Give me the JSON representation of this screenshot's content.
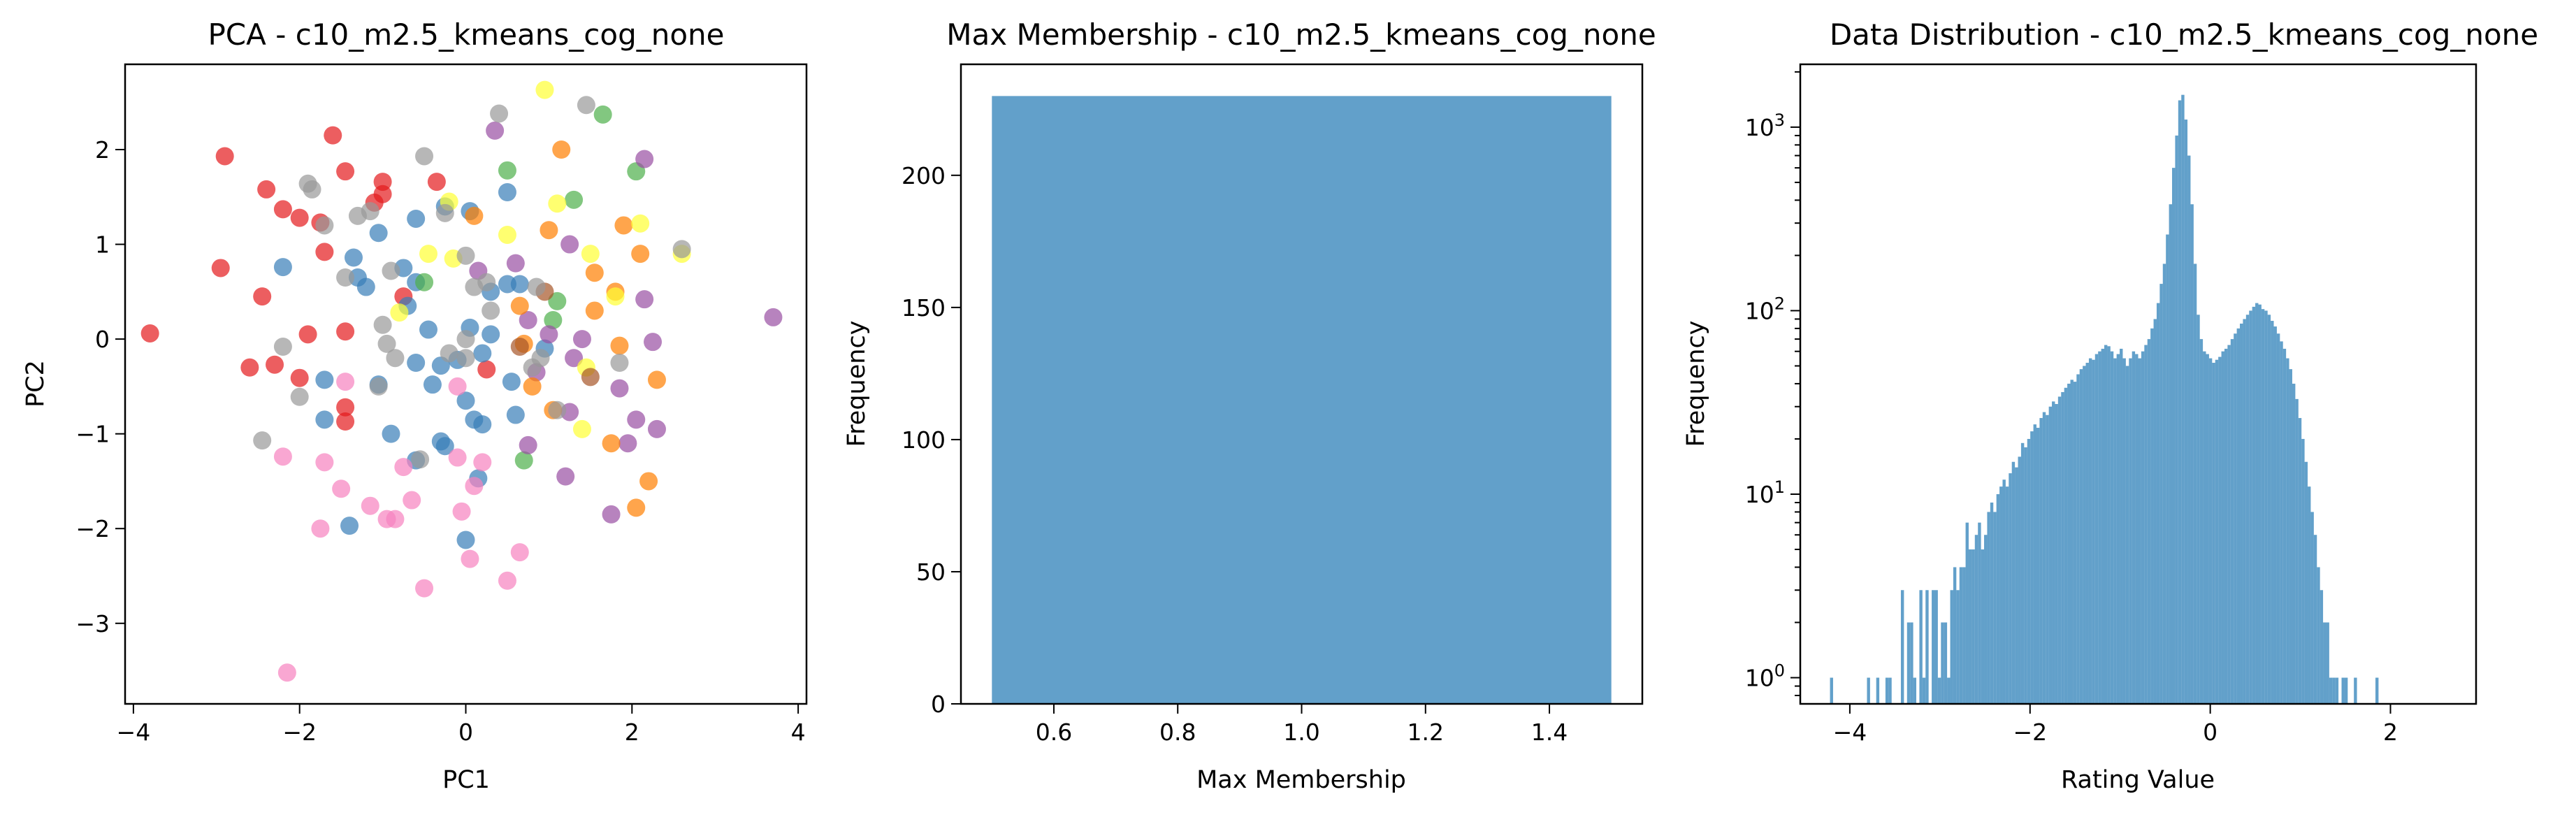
{
  "chart_data": [
    {
      "type": "scatter",
      "title": "PCA - c10_m2.5_kmeans_cog_none",
      "xlabel": "PC1",
      "ylabel": "PC2",
      "xlim": [
        -4.1,
        4.1
      ],
      "ylim": [
        -3.85,
        2.9
      ],
      "xticks": [
        -4,
        -2,
        0,
        2,
        4
      ],
      "yticks": [
        -3,
        -2,
        -1,
        0,
        1,
        2
      ],
      "xtick_labels": [
        "−4",
        "−2",
        "0",
        "2",
        "4"
      ],
      "ytick_labels": [
        "−3",
        "−2",
        "−1",
        "0",
        "1",
        "2"
      ],
      "marker_alpha": 0.7,
      "cluster_colors": [
        "#e41a1c",
        "#377eb8",
        "#4daf4a",
        "#984ea3",
        "#ff7f00",
        "#ffff33",
        "#a65628",
        "#f781bf",
        "#999999"
      ],
      "points": [
        {
          "x": -3.8,
          "y": 0.06,
          "c": 0
        },
        {
          "x": -2.9,
          "y": 1.93,
          "c": 0
        },
        {
          "x": -2.95,
          "y": 0.75,
          "c": 0
        },
        {
          "x": -2.4,
          "y": 1.58,
          "c": 0
        },
        {
          "x": -2.2,
          "y": 1.37,
          "c": 0
        },
        {
          "x": -2.0,
          "y": 1.28,
          "c": 0
        },
        {
          "x": -1.6,
          "y": 2.15,
          "c": 0
        },
        {
          "x": -1.45,
          "y": 1.77,
          "c": 0
        },
        {
          "x": -1.75,
          "y": 1.23,
          "c": 0
        },
        {
          "x": -1.1,
          "y": 1.44,
          "c": 0
        },
        {
          "x": -1.0,
          "y": 1.66,
          "c": 0
        },
        {
          "x": -1.0,
          "y": 1.53,
          "c": 0
        },
        {
          "x": -0.35,
          "y": 1.66,
          "c": 0
        },
        {
          "x": -1.7,
          "y": 0.92,
          "c": 0
        },
        {
          "x": -2.45,
          "y": 0.45,
          "c": 0
        },
        {
          "x": -1.9,
          "y": 0.05,
          "c": 0
        },
        {
          "x": -1.45,
          "y": 0.08,
          "c": 0
        },
        {
          "x": -0.75,
          "y": 0.45,
          "c": 0
        },
        {
          "x": -2.3,
          "y": -0.27,
          "c": 0
        },
        {
          "x": -2.6,
          "y": -0.3,
          "c": 0
        },
        {
          "x": -2.0,
          "y": -0.41,
          "c": 0
        },
        {
          "x": -1.45,
          "y": -0.72,
          "c": 0
        },
        {
          "x": -1.45,
          "y": -0.87,
          "c": 0
        },
        {
          "x": 0.25,
          "y": -0.32,
          "c": 0
        },
        {
          "x": -2.2,
          "y": 0.76,
          "c": 1
        },
        {
          "x": -1.35,
          "y": 0.86,
          "c": 1
        },
        {
          "x": -1.05,
          "y": 1.12,
          "c": 1
        },
        {
          "x": -0.6,
          "y": 1.27,
          "c": 1
        },
        {
          "x": -0.25,
          "y": 1.4,
          "c": 1
        },
        {
          "x": 0.05,
          "y": 1.35,
          "c": 1
        },
        {
          "x": 0.5,
          "y": 1.55,
          "c": 1
        },
        {
          "x": -1.3,
          "y": 0.65,
          "c": 1
        },
        {
          "x": -1.2,
          "y": 0.55,
          "c": 1
        },
        {
          "x": -0.75,
          "y": 0.75,
          "c": 1
        },
        {
          "x": -0.7,
          "y": 0.35,
          "c": 1
        },
        {
          "x": -0.45,
          "y": 0.1,
          "c": 1
        },
        {
          "x": -0.6,
          "y": -0.25,
          "c": 1
        },
        {
          "x": -0.4,
          "y": -0.48,
          "c": 1
        },
        {
          "x": -0.3,
          "y": -0.28,
          "c": 1
        },
        {
          "x": -0.1,
          "y": -0.22,
          "c": 1
        },
        {
          "x": 0.05,
          "y": 0.12,
          "c": 1
        },
        {
          "x": 0.3,
          "y": 0.05,
          "c": 1
        },
        {
          "x": 0.5,
          "y": 0.58,
          "c": 1
        },
        {
          "x": 0.65,
          "y": 0.58,
          "c": 1
        },
        {
          "x": 0.3,
          "y": 0.5,
          "c": 1
        },
        {
          "x": 0.2,
          "y": -0.15,
          "c": 1
        },
        {
          "x": 0.0,
          "y": -0.65,
          "c": 1
        },
        {
          "x": 0.1,
          "y": -0.85,
          "c": 1
        },
        {
          "x": 0.2,
          "y": -0.9,
          "c": 1
        },
        {
          "x": 0.55,
          "y": -0.45,
          "c": 1
        },
        {
          "x": 0.6,
          "y": -0.8,
          "c": 1
        },
        {
          "x": -1.05,
          "y": -0.48,
          "c": 1
        },
        {
          "x": -1.7,
          "y": -0.85,
          "c": 1
        },
        {
          "x": -1.7,
          "y": -0.43,
          "c": 1
        },
        {
          "x": -0.3,
          "y": -1.08,
          "c": 1
        },
        {
          "x": -0.25,
          "y": -1.13,
          "c": 1
        },
        {
          "x": -0.9,
          "y": -1.0,
          "c": 1
        },
        {
          "x": -0.6,
          "y": -1.28,
          "c": 1
        },
        {
          "x": 0.15,
          "y": -1.47,
          "c": 1
        },
        {
          "x": -1.4,
          "y": -1.97,
          "c": 1
        },
        {
          "x": 0.0,
          "y": -2.12,
          "c": 1
        },
        {
          "x": -0.6,
          "y": 0.6,
          "c": 1
        },
        {
          "x": 0.95,
          "y": -0.1,
          "c": 1
        },
        {
          "x": -0.5,
          "y": 0.6,
          "c": 2
        },
        {
          "x": 0.5,
          "y": 1.78,
          "c": 2
        },
        {
          "x": 1.3,
          "y": 1.47,
          "c": 2
        },
        {
          "x": 1.65,
          "y": 2.37,
          "c": 2
        },
        {
          "x": 2.05,
          "y": 1.77,
          "c": 2
        },
        {
          "x": 1.1,
          "y": 0.4,
          "c": 2
        },
        {
          "x": 0.7,
          "y": -1.28,
          "c": 2
        },
        {
          "x": 1.05,
          "y": 0.2,
          "c": 2
        },
        {
          "x": 0.35,
          "y": 2.2,
          "c": 3
        },
        {
          "x": 2.15,
          "y": 1.9,
          "c": 3
        },
        {
          "x": 0.6,
          "y": 0.8,
          "c": 3
        },
        {
          "x": 1.25,
          "y": 1.0,
          "c": 3
        },
        {
          "x": 2.15,
          "y": 0.42,
          "c": 3
        },
        {
          "x": 0.75,
          "y": 0.2,
          "c": 3
        },
        {
          "x": 1.0,
          "y": 0.05,
          "c": 3
        },
        {
          "x": 1.3,
          "y": -0.2,
          "c": 3
        },
        {
          "x": 1.4,
          "y": 0.0,
          "c": 3
        },
        {
          "x": 2.25,
          "y": -0.03,
          "c": 3
        },
        {
          "x": 1.85,
          "y": -0.52,
          "c": 3
        },
        {
          "x": 1.75,
          "y": -1.85,
          "c": 3
        },
        {
          "x": 1.2,
          "y": -1.45,
          "c": 3
        },
        {
          "x": 0.75,
          "y": -1.12,
          "c": 3
        },
        {
          "x": 2.05,
          "y": -0.85,
          "c": 3
        },
        {
          "x": 2.3,
          "y": -0.95,
          "c": 3
        },
        {
          "x": 1.95,
          "y": -1.1,
          "c": 3
        },
        {
          "x": 1.25,
          "y": -0.77,
          "c": 3
        },
        {
          "x": 3.7,
          "y": 0.23,
          "c": 3
        },
        {
          "x": 0.85,
          "y": -0.35,
          "c": 3
        },
        {
          "x": 0.15,
          "y": 0.72,
          "c": 3
        },
        {
          "x": 1.15,
          "y": 2.0,
          "c": 4
        },
        {
          "x": 1.9,
          "y": 1.2,
          "c": 4
        },
        {
          "x": 2.1,
          "y": 0.9,
          "c": 4
        },
        {
          "x": 1.55,
          "y": 0.7,
          "c": 4
        },
        {
          "x": 1.8,
          "y": 0.5,
          "c": 4
        },
        {
          "x": 1.55,
          "y": 0.3,
          "c": 4
        },
        {
          "x": 0.65,
          "y": 0.35,
          "c": 4
        },
        {
          "x": 0.7,
          "y": -0.05,
          "c": 4
        },
        {
          "x": 1.85,
          "y": -0.07,
          "c": 4
        },
        {
          "x": 2.3,
          "y": -0.43,
          "c": 4
        },
        {
          "x": 1.05,
          "y": -0.75,
          "c": 4
        },
        {
          "x": 1.75,
          "y": -1.1,
          "c": 4
        },
        {
          "x": 2.2,
          "y": -1.5,
          "c": 4
        },
        {
          "x": 2.05,
          "y": -1.78,
          "c": 4
        },
        {
          "x": 0.1,
          "y": 1.3,
          "c": 4
        },
        {
          "x": 1.0,
          "y": 1.15,
          "c": 4
        },
        {
          "x": 0.8,
          "y": -0.5,
          "c": 4
        },
        {
          "x": 0.95,
          "y": 2.63,
          "c": 5
        },
        {
          "x": 1.1,
          "y": 1.43,
          "c": 5
        },
        {
          "x": 2.1,
          "y": 1.22,
          "c": 5
        },
        {
          "x": 2.6,
          "y": 0.9,
          "c": 5
        },
        {
          "x": 1.5,
          "y": 0.9,
          "c": 5
        },
        {
          "x": -0.45,
          "y": 0.9,
          "c": 5
        },
        {
          "x": -0.15,
          "y": 0.85,
          "c": 5
        },
        {
          "x": 0.5,
          "y": 1.1,
          "c": 5
        },
        {
          "x": -0.8,
          "y": 0.28,
          "c": 5
        },
        {
          "x": 1.8,
          "y": 0.45,
          "c": 5
        },
        {
          "x": 1.45,
          "y": -0.3,
          "c": 5
        },
        {
          "x": 1.4,
          "y": -0.95,
          "c": 5
        },
        {
          "x": -0.2,
          "y": 1.45,
          "c": 5
        },
        {
          "x": 0.65,
          "y": -0.08,
          "c": 6
        },
        {
          "x": 1.5,
          "y": -0.4,
          "c": 6
        },
        {
          "x": 0.95,
          "y": 0.5,
          "c": 6
        },
        {
          "x": -2.2,
          "y": -1.24,
          "c": 7
        },
        {
          "x": -1.7,
          "y": -1.3,
          "c": 7
        },
        {
          "x": -1.5,
          "y": -1.58,
          "c": 7
        },
        {
          "x": -1.75,
          "y": -2.0,
          "c": 7
        },
        {
          "x": -1.15,
          "y": -1.76,
          "c": 7
        },
        {
          "x": -0.95,
          "y": -1.9,
          "c": 7
        },
        {
          "x": -0.85,
          "y": -1.9,
          "c": 7
        },
        {
          "x": -0.75,
          "y": -1.35,
          "c": 7
        },
        {
          "x": -0.65,
          "y": -1.7,
          "c": 7
        },
        {
          "x": -0.5,
          "y": -2.63,
          "c": 7
        },
        {
          "x": 0.05,
          "y": -2.32,
          "c": 7
        },
        {
          "x": 0.5,
          "y": -2.55,
          "c": 7
        },
        {
          "x": 0.65,
          "y": -2.25,
          "c": 7
        },
        {
          "x": -0.05,
          "y": -1.82,
          "c": 7
        },
        {
          "x": 0.1,
          "y": -1.55,
          "c": 7
        },
        {
          "x": -0.1,
          "y": -1.25,
          "c": 7
        },
        {
          "x": -0.1,
          "y": -0.5,
          "c": 7
        },
        {
          "x": -1.45,
          "y": -0.45,
          "c": 7
        },
        {
          "x": -2.15,
          "y": -3.52,
          "c": 7
        },
        {
          "x": 0.2,
          "y": -1.3,
          "c": 7
        },
        {
          "x": -1.9,
          "y": 1.64,
          "c": 8
        },
        {
          "x": -1.85,
          "y": 1.58,
          "c": 8
        },
        {
          "x": -1.7,
          "y": 1.2,
          "c": 8
        },
        {
          "x": -1.3,
          "y": 1.3,
          "c": 8
        },
        {
          "x": -1.15,
          "y": 1.35,
          "c": 8
        },
        {
          "x": -0.5,
          "y": 1.93,
          "c": 8
        },
        {
          "x": 0.4,
          "y": 2.38,
          "c": 8
        },
        {
          "x": 1.45,
          "y": 2.47,
          "c": 8
        },
        {
          "x": -0.9,
          "y": 0.72,
          "c": 8
        },
        {
          "x": -1.45,
          "y": 0.65,
          "c": 8
        },
        {
          "x": -1.0,
          "y": 0.15,
          "c": 8
        },
        {
          "x": -0.95,
          "y": -0.05,
          "c": 8
        },
        {
          "x": -0.2,
          "y": -0.15,
          "c": 8
        },
        {
          "x": 0.0,
          "y": 0.0,
          "c": 8
        },
        {
          "x": 0.0,
          "y": -0.2,
          "c": 8
        },
        {
          "x": 0.1,
          "y": 0.55,
          "c": 8
        },
        {
          "x": 0.3,
          "y": 0.3,
          "c": 8
        },
        {
          "x": 0.25,
          "y": 0.6,
          "c": 8
        },
        {
          "x": 0.85,
          "y": 0.55,
          "c": 8
        },
        {
          "x": 0.8,
          "y": -0.3,
          "c": 8
        },
        {
          "x": 0.9,
          "y": -0.2,
          "c": 8
        },
        {
          "x": 0.0,
          "y": 0.88,
          "c": 8
        },
        {
          "x": -2.2,
          "y": -0.08,
          "c": 8
        },
        {
          "x": -2.0,
          "y": -0.61,
          "c": 8
        },
        {
          "x": -2.45,
          "y": -1.07,
          "c": 8
        },
        {
          "x": -1.05,
          "y": -0.5,
          "c": 8
        },
        {
          "x": -0.55,
          "y": -1.27,
          "c": 8
        },
        {
          "x": 1.1,
          "y": -0.75,
          "c": 8
        },
        {
          "x": 1.85,
          "y": -0.25,
          "c": 8
        },
        {
          "x": 2.6,
          "y": 0.95,
          "c": 8
        },
        {
          "x": -0.25,
          "y": 1.33,
          "c": 8
        },
        {
          "x": -0.85,
          "y": -0.2,
          "c": 8
        }
      ]
    },
    {
      "type": "histogram",
      "title": "Max Membership - c10_m2.5_kmeans_cog_none",
      "xlabel": "Max Membership",
      "ylabel": "Frequency",
      "xlim": [
        0.45,
        1.55
      ],
      "ylim": [
        0,
        242
      ],
      "xticks": [
        0.6,
        0.8,
        1.0,
        1.2,
        1.4
      ],
      "yticks": [
        0,
        50,
        100,
        150,
        200
      ],
      "xtick_labels": [
        "0.6",
        "0.8",
        "1.0",
        "1.2",
        "1.4"
      ],
      "ytick_labels": [
        "0",
        "50",
        "100",
        "150",
        "200"
      ],
      "color": "#1f77b4",
      "alpha": 0.7,
      "bins": [
        {
          "x0": 0.5,
          "x1": 1.5,
          "count": 230
        }
      ]
    },
    {
      "type": "histogram",
      "title": "Data Distribution - c10_m2.5_kmeans_cog_none",
      "xlabel": "Rating Value",
      "ylabel": "Frequency",
      "yscale": "log",
      "xlim": [
        -4.55,
        2.95
      ],
      "ylim": [
        0.72,
        2200
      ],
      "xticks": [
        -4,
        -2,
        0,
        2
      ],
      "xtick_labels": [
        "−4",
        "−2",
        "0",
        "2"
      ],
      "yticks": [
        1,
        10,
        100,
        1000
      ],
      "ytick_bases": [
        "10",
        "10",
        "10",
        "10"
      ],
      "ytick_exponents": [
        "0",
        "1",
        "2",
        "3"
      ],
      "color": "#1f77b4",
      "alpha": 0.7,
      "bin_start": -4.22,
      "bin_width": 0.0342,
      "counts": [
        1,
        0,
        0,
        0,
        0,
        0,
        0,
        0,
        0,
        0,
        0,
        0,
        1,
        0,
        0,
        1,
        0,
        0,
        1,
        1,
        0,
        0,
        0,
        3,
        0,
        2,
        2,
        1,
        0,
        3,
        1,
        3,
        0,
        3,
        3,
        1,
        2,
        2,
        1,
        3,
        4,
        3,
        4,
        4,
        7,
        5,
        5,
        6,
        7,
        5,
        6,
        8,
        9,
        8,
        10,
        11,
        12,
        11,
        13,
        15,
        14,
        16,
        19,
        18,
        20,
        22,
        24,
        23,
        26,
        28,
        27,
        30,
        32,
        31,
        34,
        36,
        38,
        40,
        42,
        41,
        45,
        48,
        50,
        52,
        55,
        54,
        58,
        60,
        62,
        65,
        64,
        60,
        55,
        58,
        62,
        55,
        50,
        55,
        60,
        58,
        55,
        60,
        65,
        70,
        80,
        90,
        110,
        140,
        180,
        260,
        380,
        600,
        900,
        1400,
        1500,
        1100,
        700,
        380,
        180,
        95,
        70,
        60,
        58,
        55,
        52,
        54,
        56,
        60,
        62,
        65,
        70,
        75,
        80,
        85,
        90,
        95,
        100,
        105,
        110,
        108,
        102,
        100,
        95,
        88,
        82,
        75,
        68,
        62,
        55,
        48,
        40,
        33,
        26,
        20,
        15,
        11,
        8,
        6,
        4,
        3,
        2,
        2,
        1,
        1,
        1,
        0,
        1,
        1,
        0,
        0,
        1,
        0,
        0,
        0,
        0,
        0,
        0,
        1
      ]
    }
  ]
}
